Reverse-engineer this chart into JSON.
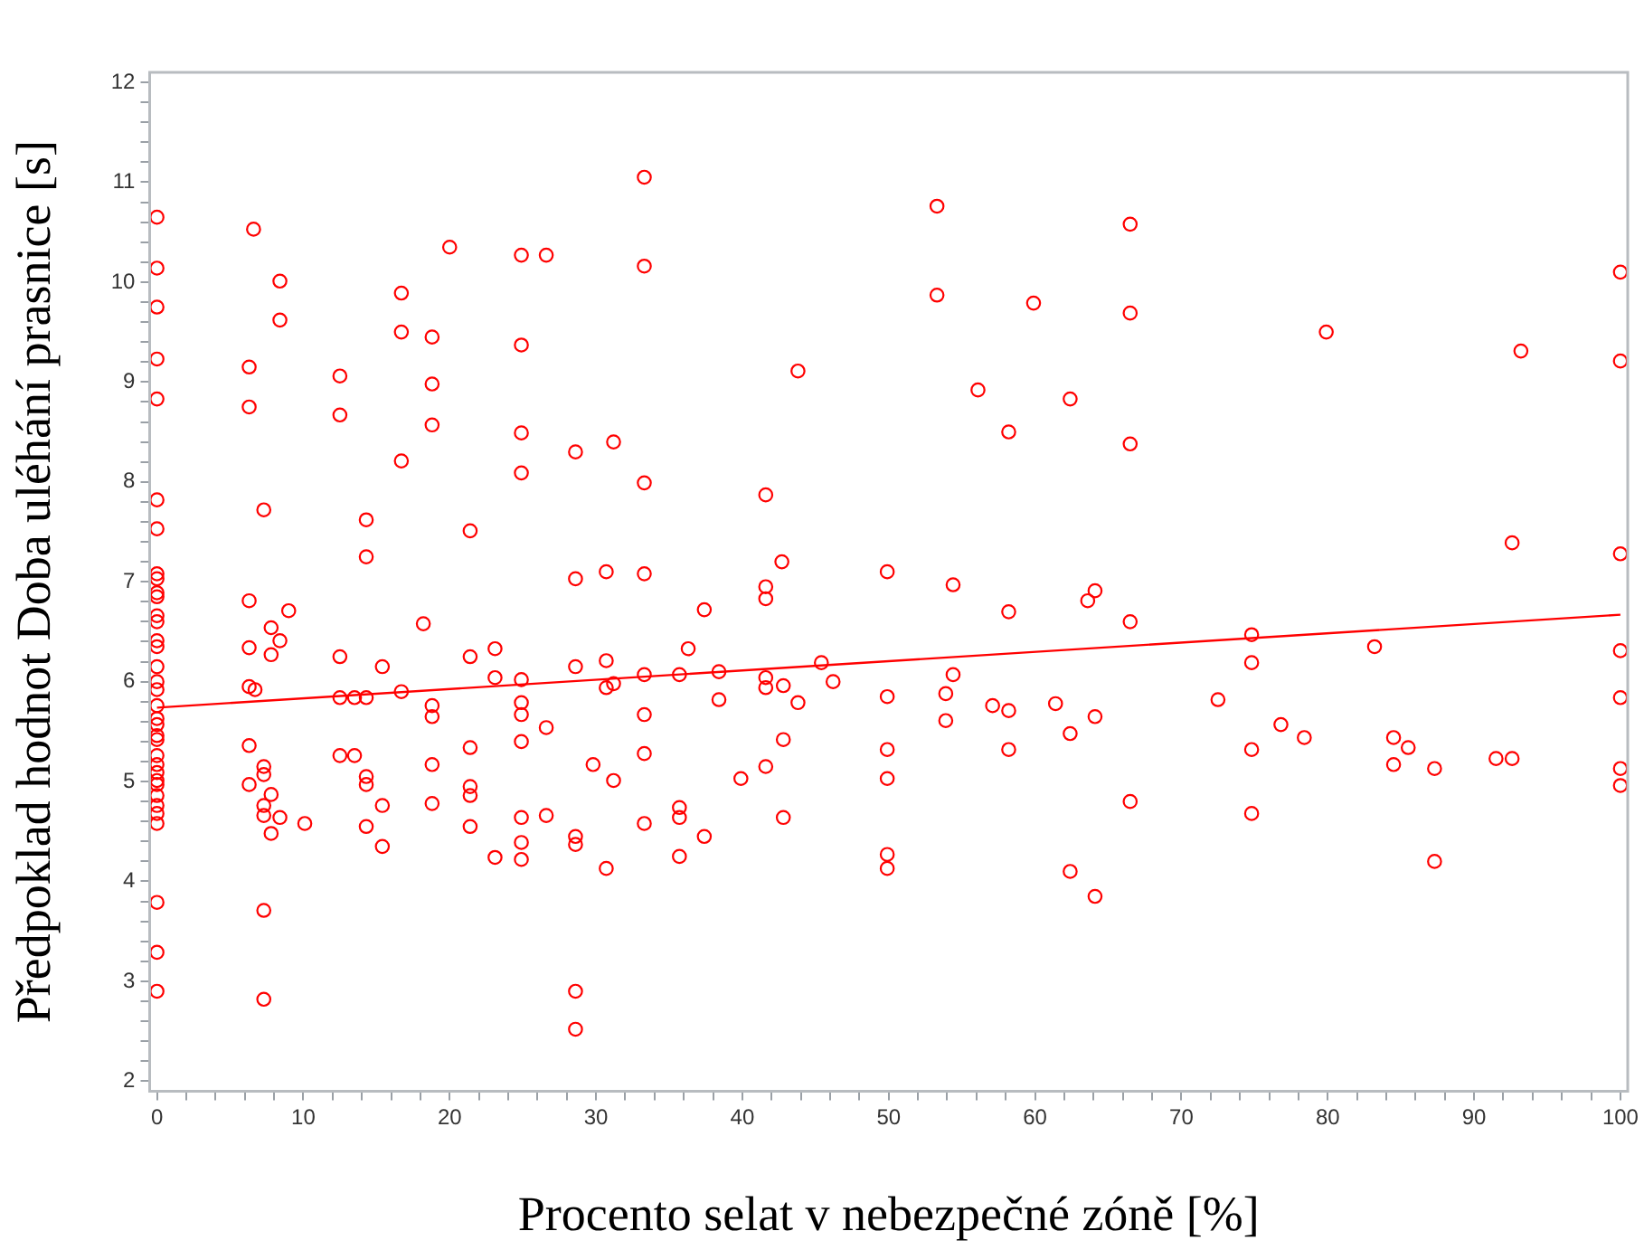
{
  "chart_data": {
    "type": "scatter",
    "xlabel": "Procento selat v nebezpečné zóně [%]",
    "ylabel": "Předpoklad hodnot Doba uléhání prasnice [s]",
    "xlim": [
      -0.5,
      100.5
    ],
    "ylim": [
      1.9,
      12.1
    ],
    "xticks": [
      0,
      {
        "value": 2,
        "label": null
      },
      {
        "value": 4,
        "label": null
      },
      {
        "value": 6,
        "label": null
      },
      {
        "value": 8,
        "label": null
      },
      10,
      {
        "value": 12,
        "label": null
      },
      {
        "value": 14,
        "label": null
      },
      {
        "value": 16,
        "label": null
      },
      {
        "value": 18,
        "label": null
      },
      20,
      {
        "value": 22,
        "label": null
      },
      {
        "value": 24,
        "label": null
      },
      {
        "value": 26,
        "label": null
      },
      {
        "value": 28,
        "label": null
      },
      30,
      {
        "value": 32,
        "label": null
      },
      {
        "value": 34,
        "label": null
      },
      {
        "value": 36,
        "label": null
      },
      {
        "value": 38,
        "label": null
      },
      40,
      {
        "value": 42,
        "label": null
      },
      {
        "value": 44,
        "label": null
      },
      {
        "value": 46,
        "label": null
      },
      {
        "value": 48,
        "label": null
      },
      50,
      {
        "value": 52,
        "label": null
      },
      {
        "value": 54,
        "label": null
      },
      {
        "value": 56,
        "label": null
      },
      {
        "value": 58,
        "label": null
      },
      60,
      {
        "value": 62,
        "label": null
      },
      {
        "value": 64,
        "label": null
      },
      {
        "value": 66,
        "label": null
      },
      {
        "value": 68,
        "label": null
      },
      70,
      {
        "value": 72,
        "label": null
      },
      {
        "value": 74,
        "label": null
      },
      {
        "value": 76,
        "label": null
      },
      {
        "value": 78,
        "label": null
      },
      80,
      {
        "value": 82,
        "label": null
      },
      {
        "value": 84,
        "label": null
      },
      {
        "value": 86,
        "label": null
      },
      {
        "value": 88,
        "label": null
      },
      90,
      {
        "value": 92,
        "label": null
      },
      {
        "value": 94,
        "label": null
      },
      {
        "value": 96,
        "label": null
      },
      {
        "value": 98,
        "label": null
      },
      100
    ],
    "yticks": [
      2,
      {
        "value": 2.2,
        "label": null
      },
      {
        "value": 2.4,
        "label": null
      },
      {
        "value": 2.6,
        "label": null
      },
      {
        "value": 2.8,
        "label": null
      },
      3,
      {
        "value": 3.2,
        "label": null
      },
      {
        "value": 3.4,
        "label": null
      },
      {
        "value": 3.6,
        "label": null
      },
      {
        "value": 3.8,
        "label": null
      },
      4,
      {
        "value": 4.2,
        "label": null
      },
      {
        "value": 4.4,
        "label": null
      },
      {
        "value": 4.6,
        "label": null
      },
      {
        "value": 4.8,
        "label": null
      },
      5,
      {
        "value": 5.2,
        "label": null
      },
      {
        "value": 5.4,
        "label": null
      },
      {
        "value": 5.6,
        "label": null
      },
      {
        "value": 5.8,
        "label": null
      },
      6,
      {
        "value": 6.2,
        "label": null
      },
      {
        "value": 6.4,
        "label": null
      },
      {
        "value": 6.6,
        "label": null
      },
      {
        "value": 6.8,
        "label": null
      },
      7,
      {
        "value": 7.2,
        "label": null
      },
      {
        "value": 7.4,
        "label": null
      },
      {
        "value": 7.6,
        "label": null
      },
      {
        "value": 7.8,
        "label": null
      },
      8,
      {
        "value": 8.2,
        "label": null
      },
      {
        "value": 8.4,
        "label": null
      },
      {
        "value": 8.6,
        "label": null
      },
      {
        "value": 8.8,
        "label": null
      },
      9,
      {
        "value": 9.2,
        "label": null
      },
      {
        "value": 9.4,
        "label": null
      },
      {
        "value": 9.6,
        "label": null
      },
      {
        "value": 9.8,
        "label": null
      },
      10,
      {
        "value": 10.2,
        "label": null
      },
      {
        "value": 10.4,
        "label": null
      },
      {
        "value": 10.6,
        "label": null
      },
      {
        "value": 10.8,
        "label": null
      },
      11,
      {
        "value": 11.2,
        "label": null
      },
      {
        "value": 11.4,
        "label": null
      },
      {
        "value": 11.6,
        "label": null
      },
      {
        "value": 11.8,
        "label": null
      },
      12
    ],
    "grid": false,
    "legend": false,
    "series": [
      {
        "color": "#ff0000",
        "marker": "circle",
        "x": [
          0,
          0,
          0,
          0,
          0,
          0,
          0,
          0,
          0,
          0,
          0,
          0,
          0,
          0,
          0,
          0,
          0,
          0,
          0,
          0,
          0,
          0,
          0,
          0,
          0,
          0,
          0,
          0,
          0,
          0,
          0,
          0,
          0,
          0,
          0,
          6.3,
          6.3,
          6.3,
          6.3,
          6.3,
          6.3,
          6.3,
          6.7,
          6.6,
          7.3,
          7.3,
          7.3,
          7.3,
          7.3,
          7.3,
          7.3,
          7.8,
          7.8,
          7.8,
          7.8,
          8.4,
          8.4,
          8.4,
          8.4,
          9.0,
          10.1,
          12.5,
          12.5,
          12.5,
          12.5,
          12.5,
          13.5,
          13.5,
          14.3,
          14.3,
          14.3,
          14.3,
          14.3,
          14.3,
          15.4,
          15.4,
          15.4,
          16.7,
          16.7,
          16.7,
          16.7,
          18.2,
          18.8,
          18.8,
          18.8,
          18.8,
          18.8,
          18.8,
          18.8,
          20.0,
          21.4,
          21.4,
          21.4,
          21.4,
          21.4,
          21.4,
          23.1,
          23.1,
          23.1,
          24.9,
          24.9,
          24.9,
          24.9,
          24.9,
          24.9,
          24.9,
          24.9,
          24.9,
          24.9,
          24.9,
          26.6,
          26.6,
          26.6,
          28.6,
          28.6,
          28.6,
          28.6,
          28.6,
          28.6,
          28.6,
          29.8,
          30.7,
          30.7,
          30.7,
          30.7,
          31.2,
          31.2,
          31.2,
          33.3,
          33.3,
          33.3,
          33.3,
          33.3,
          33.3,
          33.3,
          33.3,
          35.7,
          35.7,
          35.7,
          35.7,
          36.3,
          37.4,
          37.4,
          38.4,
          38.4,
          39.9,
          41.6,
          41.6,
          41.6,
          41.6,
          41.6,
          41.6,
          42.7,
          42.8,
          42.8,
          42.8,
          43.8,
          43.8,
          45.4,
          46.2,
          49.9,
          49.9,
          49.9,
          49.9,
          49.9,
          49.9,
          53.3,
          53.3,
          53.9,
          53.9,
          54.4,
          54.4,
          56.1,
          57.1,
          58.2,
          58.2,
          58.2,
          58.2,
          59.9,
          61.4,
          62.4,
          62.4,
          62.4,
          63.6,
          64.1,
          64.1,
          64.1,
          66.5,
          66.5,
          66.5,
          66.5,
          66.5,
          72.5,
          74.8,
          74.8,
          74.8,
          74.8,
          76.8,
          78.4,
          79.9,
          83.2,
          84.5,
          84.5,
          85.5,
          87.3,
          87.3,
          91.5,
          92.6,
          92.6,
          93.2,
          100,
          100,
          100,
          100,
          100,
          100,
          100
        ],
        "values": [
          10.65,
          10.14,
          9.75,
          9.23,
          8.83,
          7.82,
          7.53,
          7.08,
          7.03,
          6.89,
          6.85,
          6.66,
          6.6,
          6.41,
          6.35,
          6.15,
          6.0,
          5.92,
          5.76,
          5.63,
          5.57,
          5.46,
          5.42,
          5.26,
          5.17,
          5.09,
          5.01,
          4.97,
          4.86,
          4.76,
          4.68,
          4.58,
          3.79,
          3.29,
          2.9,
          6.81,
          6.34,
          5.95,
          5.36,
          4.97,
          9.15,
          8.75,
          5.92,
          10.53,
          5.15,
          5.07,
          4.76,
          4.66,
          3.71,
          2.82,
          7.72,
          6.54,
          6.27,
          4.87,
          4.48,
          6.41,
          4.64,
          10.01,
          9.62,
          6.71,
          4.58,
          6.25,
          5.84,
          5.26,
          9.06,
          8.67,
          5.84,
          5.26,
          5.84,
          5.05,
          4.97,
          4.55,
          7.62,
          7.25,
          6.15,
          4.76,
          4.35,
          5.9,
          9.89,
          9.5,
          8.21,
          6.58,
          5.76,
          5.65,
          5.17,
          4.78,
          9.45,
          8.98,
          8.57,
          10.35,
          6.25,
          5.34,
          4.95,
          4.86,
          4.55,
          7.51,
          6.33,
          6.04,
          4.24,
          6.02,
          5.79,
          5.67,
          5.4,
          4.64,
          4.39,
          4.22,
          10.27,
          9.37,
          8.49,
          8.09,
          5.54,
          4.66,
          10.27,
          7.03,
          6.15,
          4.45,
          4.37,
          2.9,
          2.52,
          8.3,
          5.17,
          7.1,
          6.21,
          5.94,
          4.13,
          8.4,
          5.98,
          5.01,
          11.05,
          10.16,
          7.99,
          7.08,
          6.07,
          5.67,
          5.28,
          4.58,
          6.07,
          4.74,
          4.64,
          4.25,
          6.33,
          6.72,
          4.45,
          6.1,
          5.82,
          5.03,
          7.87,
          6.95,
          6.83,
          6.04,
          5.94,
          5.15,
          7.2,
          5.96,
          5.42,
          4.64,
          9.11,
          5.79,
          6.19,
          6.0,
          7.1,
          5.85,
          5.32,
          5.03,
          4.27,
          4.13,
          10.76,
          9.87,
          5.88,
          5.61,
          6.97,
          6.07,
          8.92,
          5.76,
          8.5,
          6.7,
          5.71,
          5.32,
          9.79,
          5.78,
          8.83,
          5.48,
          4.1,
          6.81,
          6.91,
          5.65,
          3.85,
          10.58,
          9.69,
          8.38,
          6.6,
          4.8,
          5.82,
          6.47,
          6.19,
          5.32,
          4.68,
          5.57,
          5.44,
          9.5,
          6.35,
          5.44,
          5.17,
          5.34,
          5.13,
          4.2,
          5.23,
          5.23,
          7.39,
          9.31,
          10.1,
          9.21,
          7.28,
          6.31,
          5.84,
          5.13,
          4.96
        ]
      },
      {
        "type": "line",
        "color": "#ff0000",
        "x": [
          0,
          100
        ],
        "values": [
          5.74,
          6.67
        ]
      }
    ]
  }
}
